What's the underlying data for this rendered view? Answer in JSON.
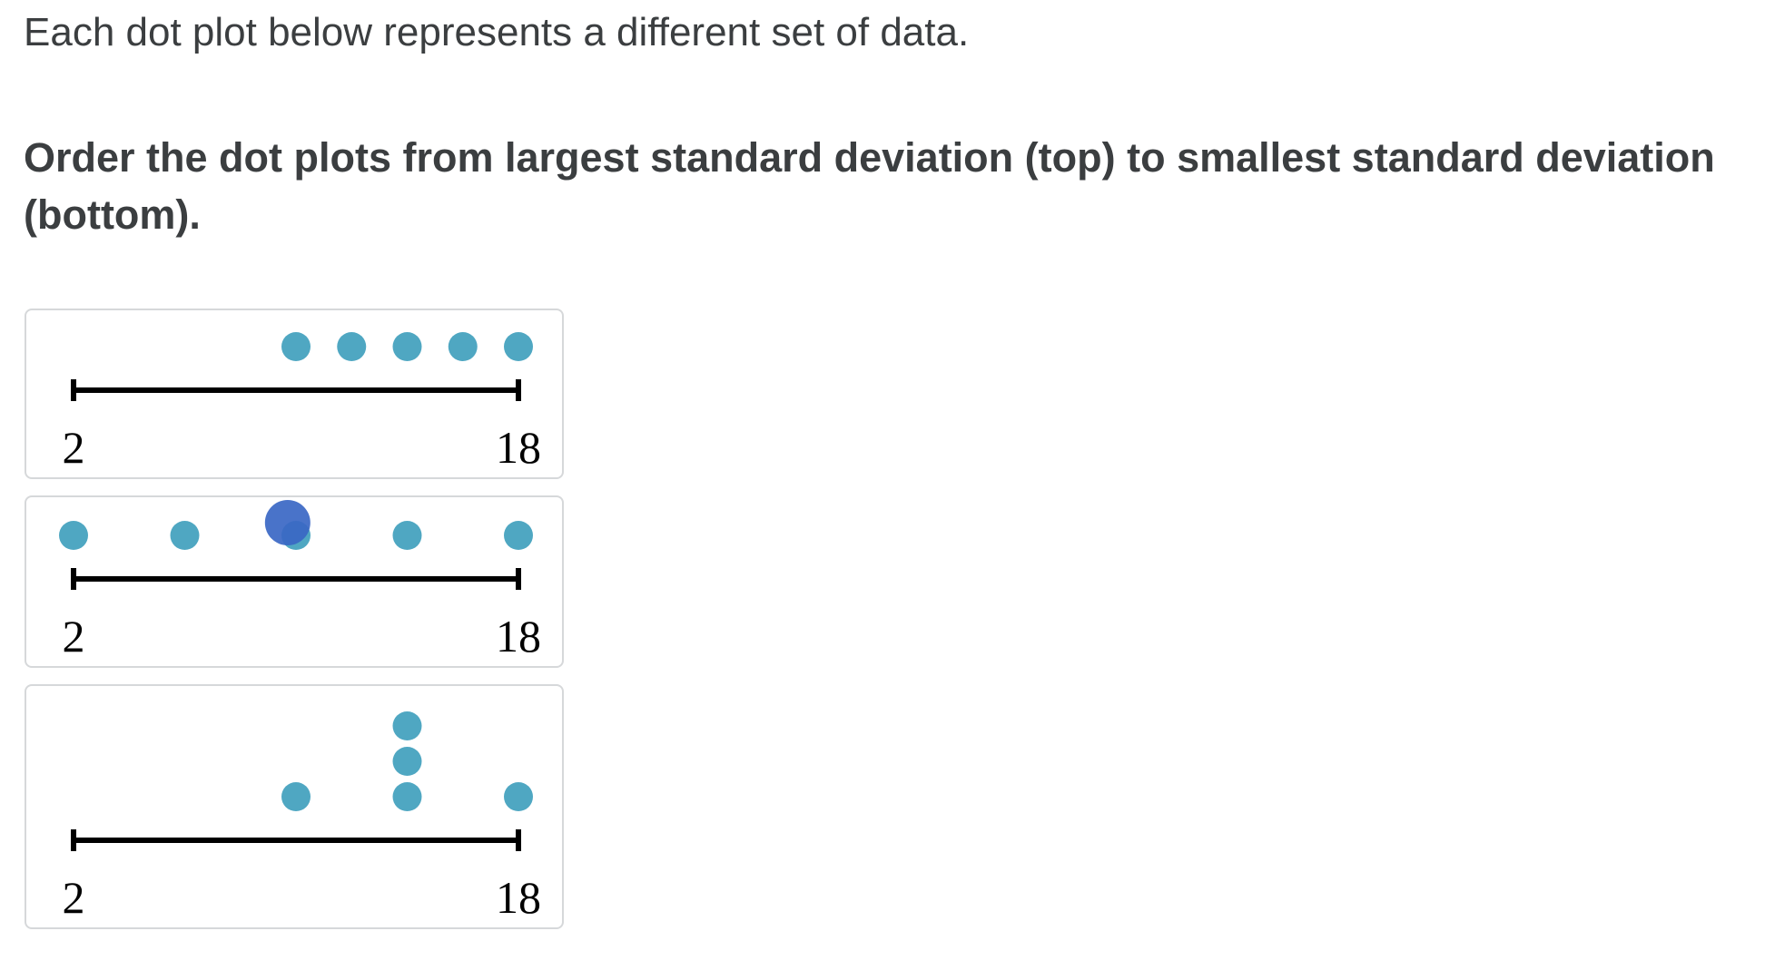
{
  "prompt": {
    "intro": "Each dot plot below represents a different set of data.",
    "instruction": "Order the dot plots from largest standard deviation (top) to smallest standard deviation (bottom)."
  },
  "colors": {
    "dot": "#4fa7c2",
    "drag_handle": "#3a67c4",
    "card_border": "#d6d8da"
  },
  "chart_data": [
    {
      "type": "scatter",
      "x_range": [
        2,
        18
      ],
      "tick_labels": [
        "2",
        "18"
      ],
      "values": [
        10,
        12,
        14,
        16,
        18
      ]
    },
    {
      "type": "scatter",
      "x_range": [
        2,
        18
      ],
      "tick_labels": [
        "2",
        "18"
      ],
      "values": [
        2,
        6,
        10,
        14,
        18
      ]
    },
    {
      "type": "scatter",
      "x_range": [
        2,
        18
      ],
      "tick_labels": [
        "2",
        "18"
      ],
      "values": [
        10,
        14,
        14,
        14,
        18
      ]
    }
  ],
  "drag_cursor": {
    "card_index": 1,
    "value": 9.7
  }
}
